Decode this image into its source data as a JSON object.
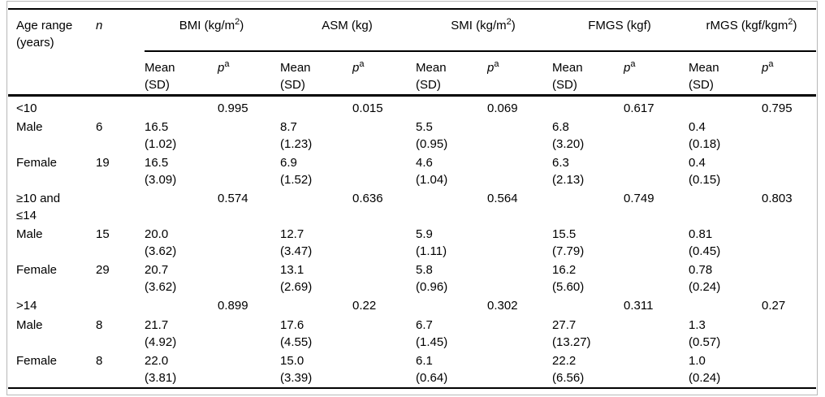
{
  "table": {
    "header": {
      "age_range_label": "Age range\n(years)",
      "n_label": "n",
      "mean_sd_label": "Mean\n(SD)",
      "p_label": "p",
      "p_sup": "a",
      "groups": [
        {
          "text": "BMI (kg/m",
          "sup": "2",
          "tail": ")"
        },
        {
          "text": "ASM (kg)",
          "sup": "",
          "tail": ""
        },
        {
          "text": "SMI (kg/m",
          "sup": "2",
          "tail": ")"
        },
        {
          "text": "FMGS (kgf)",
          "sup": "",
          "tail": ""
        },
        {
          "text": "rMGS (kgf/kgm",
          "sup": "2",
          "tail": ")"
        }
      ]
    },
    "rows": [
      {
        "type": "group",
        "label": "<10",
        "p": [
          "0.995",
          "0.015",
          "0.069",
          "0.617",
          "0.795"
        ]
      },
      {
        "type": "data",
        "label": "Male",
        "n": "6",
        "values": [
          "16.5\n(1.02)",
          "8.7\n(1.23)",
          "5.5\n(0.95)",
          "6.8\n(3.20)",
          "0.4\n(0.18)"
        ]
      },
      {
        "type": "data",
        "label": "Female",
        "n": "19",
        "values": [
          "16.5\n(3.09)",
          "6.9\n(1.52)",
          "4.6\n(1.04)",
          "6.3\n(2.13)",
          "0.4\n(0.15)"
        ]
      },
      {
        "type": "group",
        "label": "≥10 and\n≤14",
        "p": [
          "0.574",
          "0.636",
          "0.564",
          "0.749",
          "0.803"
        ]
      },
      {
        "type": "data",
        "label": "Male",
        "n": "15",
        "values": [
          "20.0\n(3.62)",
          "12.7\n(3.47)",
          "5.9\n(1.11)",
          "15.5\n(7.79)",
          "0.81\n(0.45)"
        ]
      },
      {
        "type": "data",
        "label": "Female",
        "n": "29",
        "values": [
          "20.7\n(3.62)",
          "13.1\n(2.69)",
          "5.8\n(0.96)",
          "16.2\n(5.60)",
          "0.78\n(0.24)"
        ]
      },
      {
        "type": "group",
        "label": ">14",
        "p": [
          "0.899",
          "0.22",
          "0.302",
          "0.311",
          "0.27"
        ]
      },
      {
        "type": "data",
        "label": "Male",
        "n": "8",
        "values": [
          "21.7\n(4.92)",
          "17.6\n(4.55)",
          "6.7\n(1.45)",
          "27.7\n(13.27)",
          "1.3\n(0.57)"
        ]
      },
      {
        "type": "data",
        "label": "Female",
        "n": "8",
        "values": [
          "22.0\n(3.81)",
          "15.0\n(3.39)",
          "6.1\n(0.64)",
          "22.2\n(6.56)",
          "1.0\n(0.24)"
        ]
      }
    ]
  }
}
